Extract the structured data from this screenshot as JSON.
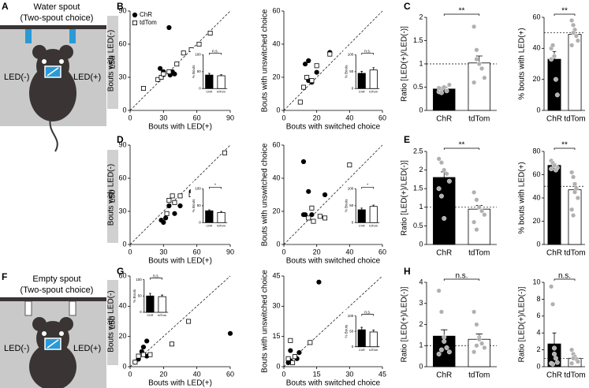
{
  "panel_labels": [
    "A",
    "B",
    "C",
    "D",
    "E",
    "F",
    "G",
    "H"
  ],
  "row_labels": [
    "L5a",
    "L5b",
    "L5b"
  ],
  "schematics": [
    {
      "title": "Water spout",
      "subtitle": "(Two-spout choice)",
      "left": "LED(-)",
      "right": "LED(+)"
    },
    {
      "title": "Empty spout",
      "subtitle": "(Two-spout choice)",
      "left": "LED(-)",
      "right": "LED(+)"
    }
  ],
  "chart_data": [
    {
      "type": "scatter",
      "xlabel": "Bouts with LED(+)",
      "ylabel": "Bouts with LED(-)",
      "xlim": [
        0,
        90
      ],
      "ylim": [
        0,
        90
      ],
      "xticks": [
        0,
        30,
        60,
        90
      ],
      "yticks": [
        0,
        30,
        60,
        90
      ],
      "legend": true,
      "series": [
        {
          "name": "ChR",
          "color": "#000000",
          "fill": "#000000",
          "marker": "circle",
          "x": [
            35,
            27,
            30,
            40,
            38,
            36,
            64
          ],
          "values": [
            75,
            38,
            35,
            33,
            35,
            32,
            51
          ]
        },
        {
          "name": "tdTom",
          "color": "#000000",
          "fill": "#ffffff",
          "marker": "square",
          "x": [
            12,
            25,
            28,
            30,
            35,
            42,
            48,
            55,
            62,
            72
          ],
          "values": [
            20,
            28,
            30,
            33,
            35,
            42,
            52,
            55,
            60,
            70
          ]
        }
      ],
      "inset": {
        "type": "bar",
        "ylabel": "% Bouts",
        "categories": [
          "ChR",
          "tdTom"
        ],
        "values": [
          40,
          38
        ],
        "errors": [
          5,
          3
        ],
        "colors": [
          "#000000",
          "#ffffff"
        ],
        "ylim": [
          0,
          100
        ],
        "yticks": [
          0,
          50,
          100
        ],
        "annotation": "n.s."
      }
    },
    {
      "type": "scatter",
      "xlabel": "Bouts with switched choice",
      "ylabel": "Bouts with unswitched choice",
      "xlim": [
        0,
        60
      ],
      "ylim": [
        0,
        60
      ],
      "xticks": [
        0,
        20,
        40,
        60
      ],
      "yticks": [
        0,
        20,
        40,
        60
      ],
      "series": [
        {
          "color": "#000000",
          "fill": "#000000",
          "marker": "circle",
          "x": [
            13,
            15,
            17,
            20,
            28,
            15
          ],
          "values": [
            28,
            18,
            17,
            23,
            35,
            30
          ]
        },
        {
          "color": "#000000",
          "fill": "#ffffff",
          "marker": "square",
          "x": [
            12,
            14,
            17,
            20,
            28,
            55,
            10
          ],
          "values": [
            14,
            20,
            18,
            27,
            34,
            28,
            5
          ]
        }
      ],
      "inset": {
        "type": "bar",
        "ylabel": "% Bouts",
        "categories": [
          "ChR",
          "tdTom"
        ],
        "values": [
          45,
          55
        ],
        "errors": [
          6,
          7
        ],
        "colors": [
          "#000000",
          "#ffffff"
        ],
        "ylim": [
          0,
          100
        ],
        "yticks": [
          0,
          50,
          100
        ],
        "annotation": "n.s."
      }
    },
    {
      "type": "bar",
      "ylabel": "Ratio [LED(+)/LED(-)]",
      "categories": [
        "ChR",
        "tdTom"
      ],
      "values": [
        0.46,
        1.02
      ],
      "errors": [
        0.04,
        0.15
      ],
      "colors": [
        "#000000",
        "#ffffff"
      ],
      "point_color": "#b0b0b0",
      "points": [
        [
          0.4,
          0.45,
          0.5,
          0.42,
          0.55,
          0.48,
          0.38
        ],
        [
          1.8,
          1.3,
          1.0,
          0.9,
          0.7,
          0.6,
          1.1,
          1.0
        ]
      ],
      "ylim": [
        0,
        2
      ],
      "yticks": [
        0,
        0.5,
        1,
        1.5,
        2
      ],
      "refline": 1,
      "annotation": "**"
    },
    {
      "type": "bar",
      "ylabel": "% bouts with LED(+)",
      "categories": [
        "ChR",
        "tdTom"
      ],
      "values": [
        33,
        49
      ],
      "errors": [
        5,
        2.5
      ],
      "colors": [
        "#000000",
        "#ffffff"
      ],
      "point_color": "#b0b0b0",
      "points": [
        [
          40,
          42,
          35,
          20,
          10,
          33
        ],
        [
          58,
          55,
          52,
          48,
          45,
          42,
          50
        ]
      ],
      "ylim": [
        0,
        60
      ],
      "yticks": [
        0,
        20,
        40,
        60
      ],
      "refline": 50,
      "annotation": "**"
    },
    {
      "type": "scatter",
      "xlabel": "Bouts with LED(+)",
      "ylabel": "Bouts with LED(-)",
      "xlim": [
        0,
        90
      ],
      "ylim": [
        0,
        90
      ],
      "xticks": [
        0,
        30,
        60,
        90
      ],
      "yticks": [
        0,
        30,
        60,
        90
      ],
      "series": [
        {
          "color": "#000000",
          "fill": "#000000",
          "marker": "circle",
          "x": [
            28,
            30,
            32,
            35,
            40,
            45,
            55,
            62,
            64
          ],
          "values": [
            22,
            20,
            24,
            35,
            28,
            35,
            48,
            45,
            40
          ]
        },
        {
          "color": "#000000",
          "fill": "#ffffff",
          "marker": "square",
          "x": [
            33,
            35,
            38,
            40,
            45,
            55,
            62,
            85
          ],
          "values": [
            28,
            40,
            44,
            38,
            44,
            45,
            38,
            83
          ]
        }
      ],
      "inset": {
        "type": "bar",
        "ylabel": "% Bouts",
        "categories": [
          "ChR",
          "tdTom"
        ],
        "values": [
          35,
          30
        ],
        "errors": [
          3,
          3
        ],
        "colors": [
          "#000000",
          "#ffffff"
        ],
        "ylim": [
          0,
          100
        ],
        "yticks": [
          0,
          50,
          100
        ],
        "annotation": "*"
      }
    },
    {
      "type": "scatter",
      "xlabel": "Bouts with switched choice",
      "ylabel": "Bouts with unswitched choice",
      "xlim": [
        0,
        60
      ],
      "ylim": [
        0,
        60
      ],
      "xticks": [
        0,
        20,
        40,
        60
      ],
      "yticks": [
        0,
        20,
        40,
        60
      ],
      "series": [
        {
          "color": "#000000",
          "fill": "#000000",
          "marker": "circle",
          "x": [
            12,
            13,
            15,
            17,
            25,
            12
          ],
          "values": [
            50,
            18,
            32,
            18,
            30,
            18
          ]
        },
        {
          "color": "#000000",
          "fill": "#ffffff",
          "marker": "square",
          "x": [
            15,
            17,
            22,
            25,
            40,
            18
          ],
          "values": [
            16,
            22,
            17,
            16,
            48,
            14
          ]
        }
      ],
      "inset": {
        "type": "bar",
        "ylabel": "% Bouts",
        "categories": [
          "ChR",
          "tdTom"
        ],
        "values": [
          38,
          48
        ],
        "errors": [
          5,
          4
        ],
        "colors": [
          "#000000",
          "#ffffff"
        ],
        "ylim": [
          0,
          100
        ],
        "yticks": [
          0,
          50,
          100
        ],
        "annotation": "*"
      }
    },
    {
      "type": "bar",
      "ylabel": "Ratio [LED(+)/LED(-)]",
      "categories": [
        "ChR",
        "tdTom"
      ],
      "values": [
        1.8,
        0.95
      ],
      "errors": [
        0.15,
        0.1
      ],
      "colors": [
        "#000000",
        "#ffffff"
      ],
      "point_color": "#b0b0b0",
      "points": [
        [
          2.3,
          2.2,
          2.0,
          1.9,
          1.7,
          1.5,
          1.3,
          0.7
        ],
        [
          1.4,
          1.2,
          1.0,
          0.9,
          0.8,
          0.6,
          0.4,
          1.0
        ]
      ],
      "ylim": [
        0,
        2.5
      ],
      "yticks": [
        0,
        0.5,
        1,
        1.5,
        2,
        2.5
      ],
      "refline": 1,
      "annotation": "**"
    },
    {
      "type": "bar",
      "ylabel": "% bouts with LED(+)",
      "categories": [
        "ChR",
        "tdTom"
      ],
      "values": [
        68,
        47
      ],
      "errors": [
        1.5,
        6
      ],
      "colors": [
        "#000000",
        "#ffffff"
      ],
      "point_color": "#b0b0b0",
      "points": [
        [
          72,
          70,
          68,
          67,
          66,
          65,
          70,
          68,
          64
        ],
        [
          62,
          58,
          52,
          48,
          40,
          30,
          25,
          45
        ]
      ],
      "ylim": [
        0,
        80
      ],
      "yticks": [
        0,
        20,
        40,
        60,
        80
      ],
      "refline": 50,
      "annotation": "**"
    },
    {
      "type": "scatter",
      "xlabel": "Bouts with LED(+)",
      "ylabel": "Bouts with LED(-)",
      "xlim": [
        0,
        60
      ],
      "ylim": [
        0,
        60
      ],
      "xticks": [
        0,
        20,
        40,
        60
      ],
      "yticks": [
        0,
        20,
        40,
        60
      ],
      "series": [
        {
          "color": "#000000",
          "fill": "#000000",
          "marker": "circle",
          "x": [
            5,
            7,
            8,
            10,
            10,
            3,
            60
          ],
          "values": [
            5,
            10,
            13,
            7,
            17,
            3,
            22
          ]
        },
        {
          "color": "#000000",
          "fill": "#ffffff",
          "marker": "square",
          "x": [
            3,
            5,
            8,
            12,
            25,
            35
          ],
          "values": [
            3,
            7,
            8,
            8,
            15,
            30
          ]
        }
      ],
      "inset": {
        "type": "bar",
        "ylabel": "% Bouts",
        "categories": [
          "ChR",
          "tdTom"
        ],
        "values": [
          50,
          48
        ],
        "errors": [
          8,
          5
        ],
        "colors": [
          "#000000",
          "#ffffff"
        ],
        "ylim": [
          0,
          100
        ],
        "yticks": [
          0,
          50,
          100
        ],
        "annotation": "n.s."
      }
    },
    {
      "type": "scatter",
      "xlabel": "Bouts with switched choice",
      "ylabel": "Bouts with unswitched choice",
      "xlim": [
        0,
        45
      ],
      "ylim": [
        0,
        45
      ],
      "xticks": [
        0,
        15,
        30,
        45
      ],
      "yticks": [
        0,
        15,
        30,
        45
      ],
      "series": [
        {
          "color": "#000000",
          "fill": "#000000",
          "marker": "circle",
          "x": [
            3,
            3,
            5,
            6,
            7,
            16,
            2
          ],
          "values": [
            8,
            3,
            5,
            4,
            7,
            42,
            2
          ]
        },
        {
          "color": "#000000",
          "fill": "#ffffff",
          "marker": "square",
          "x": [
            2,
            3,
            4,
            12,
            5
          ],
          "values": [
            4,
            13,
            2,
            12,
            5
          ]
        }
      ],
      "inset": {
        "type": "bar",
        "ylabel": "% Bouts",
        "categories": [
          "ChR",
          "tdTom"
        ],
        "values": [
          55,
          48
        ],
        "errors": [
          8,
          6
        ],
        "colors": [
          "#000000",
          "#ffffff"
        ],
        "ylim": [
          0,
          100
        ],
        "yticks": [
          0,
          50,
          100
        ],
        "annotation": "n.s."
      }
    },
    {
      "type": "bar",
      "ylabel": "Ratio [LED(+)/LED(-)]",
      "categories": [
        "ChR",
        "tdTom"
      ],
      "values": [
        1.45,
        1.3
      ],
      "errors": [
        0.3,
        0.25
      ],
      "colors": [
        "#000000",
        "#ffffff"
      ],
      "point_color": "#b0b0b0",
      "points": [
        [
          3.6,
          2.6,
          1.4,
          0.9,
          0.7,
          0.6,
          0.8,
          1.2
        ],
        [
          2.6,
          2.0,
          1.4,
          1.1,
          0.9,
          0.7,
          1.0,
          1.3
        ]
      ],
      "ylim": [
        0,
        4
      ],
      "yticks": [
        0,
        1,
        2,
        3,
        4
      ],
      "refline": 1,
      "annotation": "n.s."
    },
    {
      "type": "bar",
      "ylabel": "Ratio [LED(+)/LED(-)]",
      "categories": [
        "ChR",
        "tdTom"
      ],
      "values": [
        2.7,
        1.0
      ],
      "errors": [
        1.3,
        0.3
      ],
      "colors": [
        "#000000",
        "#ffffff"
      ],
      "point_color": "#b0b0b0",
      "points": [
        [
          9.5,
          7.4,
          2.2,
          1.0,
          0.5,
          0.4,
          0.3,
          1.5
        ],
        [
          2.0,
          1.5,
          1.2,
          0.9,
          0.6,
          0.4,
          1.0
        ]
      ],
      "ylim": [
        0,
        10
      ],
      "yticks": [
        0,
        2,
        4,
        6,
        8,
        10
      ],
      "refline": 1,
      "annotation": "n.s."
    }
  ]
}
